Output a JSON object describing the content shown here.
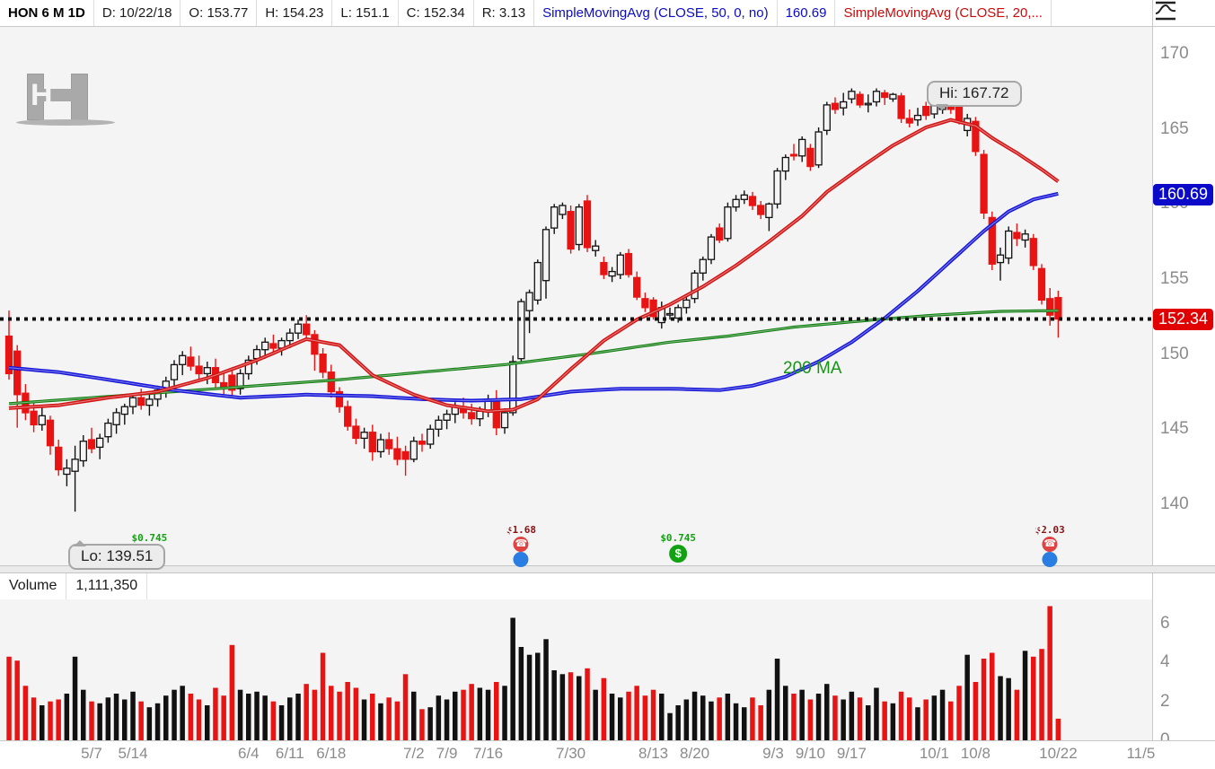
{
  "header": {
    "symbol": "HON 6 M 1D",
    "fields": [
      {
        "label": "D:",
        "value": "10/22/18"
      },
      {
        "label": "O:",
        "value": "153.77"
      },
      {
        "label": "H:",
        "value": "154.23"
      },
      {
        "label": "L:",
        "value": "151.1"
      },
      {
        "label": "C:",
        "value": "152.34"
      },
      {
        "label": "R:",
        "value": "3.13"
      }
    ],
    "sma50_label": "SimpleMovingAvg (CLOSE, 50, 0, no)",
    "sma50_value": "160.69",
    "sma20_label": "SimpleMovingAvg (CLOSE, 20,...",
    "chart_style_icon": "moving-average-curve-icon"
  },
  "watermark": {
    "letter": "H"
  },
  "volume_header": {
    "label": "Volume",
    "value": "1,111,350"
  },
  "colors": {
    "up": "#111111",
    "down": "#e81414",
    "ma20": "#d21212",
    "ma50": "#1616d8",
    "ma200": "#0f7d0f",
    "badge_blue": "#0a0ac8",
    "badge_red": "#e00000",
    "dotted_line": "#111111",
    "dividend_green": "#12a112",
    "earnings_red": "#e04343",
    "earnings_blue": "#2a7de1",
    "axis_text": "#8b8b8b"
  },
  "chart_data": {
    "type": "candlestick+volume",
    "symbol": "HON",
    "range": "6 M",
    "interval": "1D",
    "price_axis": {
      "ticks": [
        170,
        165,
        160,
        155,
        150,
        145,
        140
      ]
    },
    "volume_axis": {
      "ticks": [
        6,
        4,
        2,
        0
      ],
      "unit": "millions"
    },
    "x_labels": [
      {
        "t": "5/7",
        "i": 10
      },
      {
        "t": "5/14",
        "i": 15
      },
      {
        "t": "6/4",
        "i": 29
      },
      {
        "t": "6/11",
        "i": 34
      },
      {
        "t": "6/18",
        "i": 39
      },
      {
        "t": "7/2",
        "i": 49
      },
      {
        "t": "7/9",
        "i": 53
      },
      {
        "t": "7/16",
        "i": 58
      },
      {
        "t": "7/30",
        "i": 68
      },
      {
        "t": "8/13",
        "i": 78
      },
      {
        "t": "8/20",
        "i": 83
      },
      {
        "t": "9/3",
        "i": 92.5
      },
      {
        "t": "9/10",
        "i": 97
      },
      {
        "t": "9/17",
        "i": 102
      },
      {
        "t": "10/1",
        "i": 112
      },
      {
        "t": "10/8",
        "i": 117
      },
      {
        "t": "10/22",
        "i": 127
      },
      {
        "t": "11/5",
        "i": 137
      }
    ],
    "candles": [
      [
        151.2,
        152.9,
        148.3,
        148.7,
        4.3
      ],
      [
        150.2,
        150.6,
        145.1,
        147.3,
        4.1
      ],
      [
        147.4,
        148.0,
        145.6,
        146.1,
        2.8
      ],
      [
        146.2,
        146.9,
        144.8,
        145.3,
        2.2
      ],
      [
        145.3,
        146.5,
        144.9,
        145.9,
        1.8
      ],
      [
        145.6,
        145.9,
        143.3,
        143.9,
        2.0
      ],
      [
        143.8,
        144.3,
        141.9,
        142.3,
        2.1
      ],
      [
        142.0,
        143.0,
        141.2,
        142.4,
        2.4
      ],
      [
        142.2,
        143.9,
        139.51,
        143.0,
        4.3
      ],
      [
        142.9,
        144.6,
        142.5,
        144.2,
        2.6
      ],
      [
        144.3,
        145.1,
        143.4,
        143.7,
        2.0
      ],
      [
        143.8,
        144.7,
        143.0,
        144.4,
        1.9
      ],
      [
        144.5,
        145.7,
        144.1,
        145.4,
        2.2
      ],
      [
        145.3,
        146.4,
        144.7,
        146.1,
        2.4
      ],
      [
        146.0,
        146.7,
        145.3,
        146.5,
        2.1
      ],
      [
        146.5,
        147.4,
        146.0,
        147.1,
        2.5
      ],
      [
        147.1,
        147.7,
        146.3,
        146.6,
        2.0
      ],
      [
        146.6,
        147.3,
        145.9,
        147.0,
        1.7
      ],
      [
        147.0,
        147.9,
        146.5,
        147.6,
        1.9
      ],
      [
        147.6,
        148.5,
        147.1,
        148.2,
        2.3
      ],
      [
        148.3,
        149.6,
        147.9,
        149.3,
        2.6
      ],
      [
        149.3,
        150.2,
        148.6,
        149.9,
        2.8
      ],
      [
        149.8,
        150.5,
        148.9,
        149.2,
        2.4
      ],
      [
        149.2,
        149.9,
        148.3,
        148.7,
        2.1
      ],
      [
        148.7,
        149.5,
        148.0,
        149.1,
        1.8
      ],
      [
        149.1,
        149.7,
        147.7,
        148.1,
        2.7
      ],
      [
        148.1,
        148.9,
        147.3,
        147.8,
        2.3
      ],
      [
        148.6,
        149.0,
        147.1,
        147.6,
        4.9
      ],
      [
        147.7,
        149.0,
        147.3,
        148.7,
        2.6
      ],
      [
        148.7,
        149.9,
        148.3,
        149.6,
        2.4
      ],
      [
        149.7,
        150.6,
        149.3,
        150.3,
        2.5
      ],
      [
        150.3,
        151.1,
        149.7,
        150.8,
        2.3
      ],
      [
        150.7,
        151.3,
        150.0,
        150.4,
        2.0
      ],
      [
        150.4,
        151.1,
        149.9,
        150.9,
        1.8
      ],
      [
        150.9,
        151.7,
        150.4,
        151.4,
        2.2
      ],
      [
        151.4,
        152.3,
        151.0,
        152.0,
        2.4
      ],
      [
        152.0,
        152.6,
        151.0,
        151.3,
        2.9
      ],
      [
        151.3,
        151.6,
        148.9,
        150.0,
        2.6
      ],
      [
        150.0,
        150.4,
        148.4,
        148.8,
        4.5
      ],
      [
        148.8,
        149.3,
        147.1,
        147.5,
        2.8
      ],
      [
        147.5,
        147.8,
        146.1,
        146.5,
        2.5
      ],
      [
        146.5,
        146.9,
        144.9,
        145.2,
        3.0
      ],
      [
        145.2,
        145.7,
        144.0,
        144.4,
        2.7
      ],
      [
        144.4,
        145.1,
        143.7,
        144.8,
        2.1
      ],
      [
        144.8,
        145.3,
        142.9,
        143.5,
        2.4
      ],
      [
        143.5,
        144.7,
        143.1,
        144.3,
        1.9
      ],
      [
        144.3,
        144.8,
        143.3,
        143.7,
        2.2
      ],
      [
        143.7,
        144.5,
        142.6,
        143.0,
        2.0
      ],
      [
        143.5,
        143.9,
        141.9,
        143.0,
        3.4
      ],
      [
        143.0,
        144.5,
        142.8,
        144.2,
        2.5
      ],
      [
        144.2,
        144.7,
        143.5,
        144.0,
        1.6
      ],
      [
        144.0,
        145.3,
        143.7,
        145.0,
        1.7
      ],
      [
        145.0,
        145.9,
        144.5,
        145.6,
        2.3
      ],
      [
        145.6,
        146.3,
        145.0,
        146.0,
        2.1
      ],
      [
        146.0,
        146.8,
        145.4,
        146.5,
        2.5
      ],
      [
        146.5,
        147.1,
        145.7,
        146.1,
        2.6
      ],
      [
        146.1,
        146.7,
        145.3,
        145.7,
        2.9
      ],
      [
        145.7,
        146.5,
        145.2,
        146.2,
        2.7
      ],
      [
        146.2,
        147.3,
        145.8,
        147.0,
        2.6
      ],
      [
        147.0,
        147.6,
        144.6,
        145.1,
        3.0
      ],
      [
        145.1,
        146.4,
        144.7,
        146.1,
        2.8
      ],
      [
        146.1,
        149.9,
        145.9,
        149.5,
        6.3
      ],
      [
        149.7,
        153.7,
        149.4,
        153.5,
        4.8
      ],
      [
        152.9,
        154.3,
        151.4,
        154.1,
        4.4
      ],
      [
        153.6,
        156.3,
        153.3,
        156.1,
        4.5
      ],
      [
        154.9,
        158.5,
        153.7,
        158.3,
        5.2
      ],
      [
        158.4,
        160.0,
        158.0,
        159.8,
        3.6
      ],
      [
        159.3,
        160.1,
        159.0,
        159.9,
        3.4
      ],
      [
        159.5,
        159.9,
        156.7,
        157.0,
        3.5
      ],
      [
        157.3,
        160.0,
        156.9,
        159.8,
        3.3
      ],
      [
        160.2,
        160.6,
        156.8,
        157.1,
        3.7
      ],
      [
        156.9,
        157.6,
        156.5,
        157.2,
        2.6
      ],
      [
        156.1,
        156.5,
        155.0,
        155.3,
        3.2
      ],
      [
        155.2,
        155.8,
        154.8,
        155.5,
        2.4
      ],
      [
        155.3,
        156.8,
        155.0,
        156.6,
        2.2
      ],
      [
        156.7,
        157.0,
        155.1,
        155.3,
        2.5
      ],
      [
        155.1,
        155.5,
        153.6,
        153.8,
        2.8
      ],
      [
        153.7,
        154.1,
        152.8,
        153.1,
        2.3
      ],
      [
        153.6,
        153.8,
        152.3,
        152.5,
        2.6
      ],
      [
        152.1,
        153.5,
        151.7,
        153.1,
        2.4
      ],
      [
        152.7,
        153.1,
        152.3,
        152.7,
        1.4
      ],
      [
        152.4,
        153.3,
        152.1,
        153.1,
        1.8
      ],
      [
        153.1,
        153.9,
        152.7,
        153.6,
        2.1
      ],
      [
        153.7,
        155.6,
        153.4,
        155.4,
        2.5
      ],
      [
        155.4,
        156.5,
        154.9,
        156.3,
        2.3
      ],
      [
        156.3,
        158.0,
        156.0,
        157.8,
        2.0
      ],
      [
        158.4,
        158.7,
        157.4,
        157.6,
        2.2
      ],
      [
        157.7,
        160.1,
        157.5,
        159.8,
        2.4
      ],
      [
        159.8,
        160.6,
        159.5,
        160.3,
        1.9
      ],
      [
        160.3,
        160.9,
        160.0,
        160.6,
        1.7
      ],
      [
        160.5,
        160.8,
        159.6,
        159.9,
        2.2
      ],
      [
        159.9,
        160.2,
        159.0,
        159.3,
        1.8
      ],
      [
        159.1,
        160.1,
        158.2,
        160.0,
        2.6
      ],
      [
        160.0,
        162.4,
        159.7,
        162.2,
        4.2
      ],
      [
        162.2,
        163.3,
        161.6,
        163.1,
        2.8
      ],
      [
        163.3,
        164.0,
        162.9,
        163.2,
        2.4
      ],
      [
        163.2,
        164.5,
        162.8,
        164.3,
        2.6
      ],
      [
        163.7,
        164.0,
        162.2,
        162.5,
        2.1
      ],
      [
        162.6,
        165.1,
        162.4,
        164.8,
        2.4
      ],
      [
        164.9,
        166.8,
        164.6,
        166.6,
        2.9
      ],
      [
        166.7,
        167.1,
        166.0,
        166.3,
        2.3
      ],
      [
        166.4,
        167.4,
        165.9,
        166.8,
        2.1
      ],
      [
        167.0,
        167.7,
        166.7,
        167.5,
        2.5
      ],
      [
        167.3,
        167.5,
        166.4,
        166.6,
        2.2
      ],
      [
        166.7,
        167.3,
        166.1,
        166.7,
        1.8
      ],
      [
        166.8,
        167.7,
        166.5,
        167.5,
        2.7
      ],
      [
        167.4,
        167.6,
        166.6,
        167.1,
        2.0
      ],
      [
        167.0,
        167.4,
        166.8,
        167.3,
        1.9
      ],
      [
        167.2,
        167.4,
        165.4,
        165.7,
        2.5
      ],
      [
        165.7,
        166.3,
        165.1,
        165.4,
        2.2
      ],
      [
        165.6,
        166.4,
        165.2,
        165.9,
        1.7
      ],
      [
        166.5,
        166.8,
        165.6,
        165.9,
        2.1
      ],
      [
        166.0,
        167.1,
        165.7,
        166.9,
        2.3
      ],
      [
        166.3,
        167.72,
        166.0,
        166.6,
        2.6
      ],
      [
        166.5,
        166.9,
        166.0,
        166.3,
        2.0
      ],
      [
        167.0,
        167.2,
        165.3,
        165.5,
        2.8
      ],
      [
        164.9,
        166.0,
        164.5,
        165.7,
        4.4
      ],
      [
        165.5,
        165.8,
        163.2,
        163.5,
        3.0
      ],
      [
        163.3,
        163.6,
        159.0,
        159.4,
        4.2
      ],
      [
        159.1,
        159.5,
        155.6,
        156.0,
        4.5
      ],
      [
        156.1,
        157.1,
        154.9,
        156.6,
        3.3
      ],
      [
        156.4,
        158.5,
        156.0,
        158.2,
        3.2
      ],
      [
        158.1,
        158.7,
        157.2,
        157.7,
        2.6
      ],
      [
        157.6,
        158.3,
        157.1,
        158.0,
        4.6
      ],
      [
        157.7,
        158.0,
        155.6,
        155.9,
        4.3
      ],
      [
        155.7,
        156.0,
        153.3,
        153.6,
        4.7
      ],
      [
        153.7,
        154.4,
        151.9,
        152.6,
        6.9
      ],
      [
        153.77,
        154.23,
        151.1,
        152.34,
        1.11
      ]
    ],
    "ma20_anchors": [
      [
        0,
        146.4
      ],
      [
        6,
        146.6
      ],
      [
        12,
        147.1
      ],
      [
        18,
        147.5
      ],
      [
        24,
        148.4
      ],
      [
        30,
        149.6
      ],
      [
        36,
        151.0
      ],
      [
        40,
        150.6
      ],
      [
        44,
        148.6
      ],
      [
        49,
        147.3
      ],
      [
        53,
        146.6
      ],
      [
        58,
        146.2
      ],
      [
        61,
        146.3
      ],
      [
        64,
        147.0
      ],
      [
        68,
        149.0
      ],
      [
        72,
        150.9
      ],
      [
        76,
        152.3
      ],
      [
        80,
        153.3
      ],
      [
        84,
        154.5
      ],
      [
        88,
        155.9
      ],
      [
        92,
        157.5
      ],
      [
        96,
        159.2
      ],
      [
        99,
        160.8
      ],
      [
        103,
        162.4
      ],
      [
        107,
        163.9
      ],
      [
        111,
        165.1
      ],
      [
        114,
        165.6
      ],
      [
        117,
        165.2
      ],
      [
        119,
        164.4
      ],
      [
        122,
        163.4
      ],
      [
        125,
        162.3
      ],
      [
        127,
        161.5
      ]
    ],
    "ma50_anchors": [
      [
        0,
        149.1
      ],
      [
        6,
        148.8
      ],
      [
        12,
        148.3
      ],
      [
        20,
        147.6
      ],
      [
        28,
        147.1
      ],
      [
        36,
        147.3
      ],
      [
        44,
        147.2
      ],
      [
        50,
        147.0
      ],
      [
        56,
        146.9
      ],
      [
        62,
        147.0
      ],
      [
        68,
        147.5
      ],
      [
        74,
        147.7
      ],
      [
        80,
        147.7
      ],
      [
        86,
        147.6
      ],
      [
        90,
        147.9
      ],
      [
        94,
        148.5
      ],
      [
        98,
        149.5
      ],
      [
        102,
        150.8
      ],
      [
        106,
        152.4
      ],
      [
        110,
        154.2
      ],
      [
        114,
        156.2
      ],
      [
        118,
        158.2
      ],
      [
        121,
        159.5
      ],
      [
        124,
        160.3
      ],
      [
        127,
        160.69
      ]
    ],
    "ma200_anchors": [
      [
        0,
        146.7
      ],
      [
        10,
        147.1
      ],
      [
        20,
        147.5
      ],
      [
        30,
        147.9
      ],
      [
        40,
        148.3
      ],
      [
        50,
        148.8
      ],
      [
        60,
        149.3
      ],
      [
        70,
        150.0
      ],
      [
        80,
        150.8
      ],
      [
        87,
        151.2
      ],
      [
        95,
        151.8
      ],
      [
        105,
        152.3
      ],
      [
        112,
        152.6
      ],
      [
        120,
        152.85
      ],
      [
        127,
        152.9
      ]
    ],
    "annotations": {
      "hi_label": "Hi: 167.72",
      "hi_value": 167.72,
      "hi_i": 113,
      "lo_label": "Lo: 139.51",
      "lo_value": 139.51,
      "lo_i": 8,
      "close_line_value": 152.34,
      "ma200_label": "200 MA"
    },
    "badges": [
      {
        "text": "160.69",
        "value": 160.69,
        "color_key": "badge_blue"
      },
      {
        "text": "152.34",
        "value": 152.34,
        "color_key": "badge_red"
      }
    ],
    "events": [
      {
        "i": 17,
        "kind": "dividend",
        "label": "$0.745"
      },
      {
        "i": 62,
        "kind": "earnings",
        "label": "$1.68"
      },
      {
        "i": 81,
        "kind": "dividend",
        "label": "$0.745"
      },
      {
        "i": 126,
        "kind": "earnings",
        "label": "$2.03"
      }
    ]
  }
}
